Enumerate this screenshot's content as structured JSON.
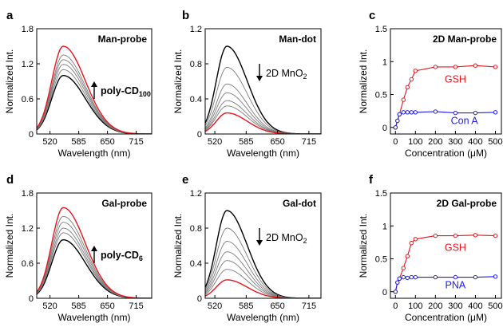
{
  "chart_data": [
    {
      "panel": "a",
      "type": "line",
      "annotation": "Man-probe",
      "arrow": "up",
      "arrow_label": "poly-CD",
      "arrow_label_sub": "100",
      "xlabel": "Wavelength (nm)",
      "ylabel": "Normalized Int.",
      "xlim": [
        490,
        750
      ],
      "ylim": [
        0,
        1.8
      ],
      "xticks": [
        520,
        585,
        650,
        715
      ],
      "yticks": [
        0.0,
        0.6,
        1.2,
        1.8
      ],
      "peak_x": 550,
      "sigma_left": 26,
      "sigma_right": 50,
      "series": [
        {
          "peak": 1.0,
          "color": "#000000",
          "width": 1.4
        },
        {
          "peak": 1.1,
          "color": "#7a7a7a",
          "width": 0.9
        },
        {
          "peak": 1.19,
          "color": "#7a7a7a",
          "width": 0.9
        },
        {
          "peak": 1.27,
          "color": "#7a7a7a",
          "width": 0.9
        },
        {
          "peak": 1.35,
          "color": "#7a7a7a",
          "width": 0.9
        },
        {
          "peak": 1.5,
          "color": "#e8141c",
          "width": 1.4
        }
      ]
    },
    {
      "panel": "b",
      "type": "line",
      "annotation": "Man-dot",
      "arrow": "down",
      "arrow_label": "2D MnO",
      "arrow_label_sub": "2",
      "xlabel": "Wavelength (nm)",
      "ylabel": "Normalized Int.",
      "xlim": [
        500,
        740
      ],
      "ylim": [
        0,
        1.2
      ],
      "xticks": [
        520,
        585,
        650,
        715
      ],
      "yticks": [
        0.0,
        0.4,
        0.8,
        1.2
      ],
      "peak_x": 545,
      "sigma_left": 22,
      "sigma_right": 42,
      "series": [
        {
          "peak": 1.0,
          "color": "#000000",
          "width": 1.4
        },
        {
          "peak": 0.76,
          "color": "#7a7a7a",
          "width": 0.9
        },
        {
          "peak": 0.57,
          "color": "#7a7a7a",
          "width": 0.9
        },
        {
          "peak": 0.47,
          "color": "#7a7a7a",
          "width": 0.9
        },
        {
          "peak": 0.38,
          "color": "#7a7a7a",
          "width": 0.9
        },
        {
          "peak": 0.32,
          "color": "#7a7a7a",
          "width": 0.9
        },
        {
          "peak": 0.24,
          "color": "#e8141c",
          "width": 1.4
        }
      ]
    },
    {
      "panel": "c",
      "type": "line",
      "annotation": "2D Man-probe",
      "xlabel": "Concentration (μM)",
      "ylabel": "Normalized Int.",
      "xlim": [
        -25,
        530
      ],
      "ylim": [
        -0.1,
        1.5
      ],
      "xticks": [
        0,
        100,
        200,
        300,
        400,
        500
      ],
      "yticks": [
        0.0,
        0.5,
        1.0,
        1.5
      ],
      "series": [
        {
          "name": "GSH",
          "color": "#e8141c",
          "x": [
            0,
            10,
            20,
            40,
            60,
            80,
            100,
            200,
            300,
            400,
            500
          ],
          "y": [
            0.0,
            0.1,
            0.2,
            0.42,
            0.61,
            0.73,
            0.86,
            0.92,
            0.92,
            0.94,
            0.92
          ]
        },
        {
          "name": "Con A",
          "color": "#1d1df0",
          "x": [
            0,
            10,
            20,
            40,
            60,
            80,
            100,
            200,
            300,
            400,
            500
          ],
          "y": [
            0.0,
            0.1,
            0.2,
            0.23,
            0.23,
            0.23,
            0.23,
            0.24,
            0.22,
            0.22,
            0.23
          ]
        }
      ],
      "labels": [
        {
          "text": "GSH",
          "x": 300,
          "y": 0.68
        },
        {
          "text": "Con A",
          "x": 345,
          "y": 0.05
        }
      ]
    },
    {
      "panel": "d",
      "type": "line",
      "annotation": "Gal-probe",
      "arrow": "up",
      "arrow_label": "poly-CD",
      "arrow_label_sub": "6",
      "xlabel": "Wavelength (nm)",
      "ylabel": "Normalized Int.",
      "xlim": [
        490,
        750
      ],
      "ylim": [
        0,
        1.8
      ],
      "xticks": [
        520,
        585,
        650,
        715
      ],
      "yticks": [
        0.0,
        0.6,
        1.2,
        1.8
      ],
      "peak_x": 550,
      "sigma_left": 26,
      "sigma_right": 50,
      "series": [
        {
          "peak": 1.0,
          "color": "#000000",
          "width": 1.4
        },
        {
          "peak": 1.12,
          "color": "#7a7a7a",
          "width": 0.9
        },
        {
          "peak": 1.2,
          "color": "#7a7a7a",
          "width": 0.9
        },
        {
          "peak": 1.3,
          "color": "#7a7a7a",
          "width": 0.9
        },
        {
          "peak": 1.4,
          "color": "#7a7a7a",
          "width": 0.9
        },
        {
          "peak": 1.55,
          "color": "#e8141c",
          "width": 1.4
        }
      ]
    },
    {
      "panel": "e",
      "type": "line",
      "annotation": "Gal-dot",
      "arrow": "down",
      "arrow_label": "2D MnO",
      "arrow_label_sub": "2",
      "xlabel": "Wavelength (nm)",
      "ylabel": "Normalized Int.",
      "xlim": [
        500,
        740
      ],
      "ylim": [
        0,
        1.2
      ],
      "xticks": [
        520,
        585,
        650,
        715
      ],
      "yticks": [
        0.0,
        0.4,
        0.8,
        1.2
      ],
      "peak_x": 545,
      "sigma_left": 22,
      "sigma_right": 42,
      "series": [
        {
          "peak": 1.0,
          "color": "#000000",
          "width": 1.4
        },
        {
          "peak": 0.8,
          "color": "#7a7a7a",
          "width": 0.9
        },
        {
          "peak": 0.65,
          "color": "#7a7a7a",
          "width": 0.9
        },
        {
          "peak": 0.53,
          "color": "#7a7a7a",
          "width": 0.9
        },
        {
          "peak": 0.43,
          "color": "#7a7a7a",
          "width": 0.9
        },
        {
          "peak": 0.33,
          "color": "#7a7a7a",
          "width": 0.9
        },
        {
          "peak": 0.21,
          "color": "#e8141c",
          "width": 1.4
        }
      ]
    },
    {
      "panel": "f",
      "type": "line",
      "annotation": "2D Gal-probe",
      "xlabel": "Concentration (μM)",
      "ylabel": "Normalized Int.",
      "xlim": [
        -25,
        530
      ],
      "ylim": [
        -0.1,
        1.5
      ],
      "xticks": [
        0,
        100,
        200,
        300,
        400,
        500
      ],
      "yticks": [
        0.0,
        0.5,
        1.0,
        1.5
      ],
      "series": [
        {
          "name": "GSH",
          "color": "#e8141c",
          "x": [
            0,
            10,
            20,
            40,
            60,
            80,
            100,
            200,
            300,
            400,
            500
          ],
          "y": [
            0.0,
            0.14,
            0.2,
            0.36,
            0.54,
            0.74,
            0.8,
            0.85,
            0.85,
            0.86,
            0.85
          ]
        },
        {
          "name": "PNA",
          "color": "#1d1df0",
          "x": [
            0,
            10,
            20,
            40,
            60,
            80,
            100,
            200,
            300,
            400,
            500
          ],
          "y": [
            0.0,
            0.14,
            0.2,
            0.22,
            0.21,
            0.22,
            0.22,
            0.22,
            0.22,
            0.22,
            0.23
          ]
        }
      ],
      "labels": [
        {
          "text": "GSH",
          "x": 300,
          "y": 0.62
        },
        {
          "text": "PNA",
          "x": 300,
          "y": 0.05
        }
      ]
    }
  ]
}
